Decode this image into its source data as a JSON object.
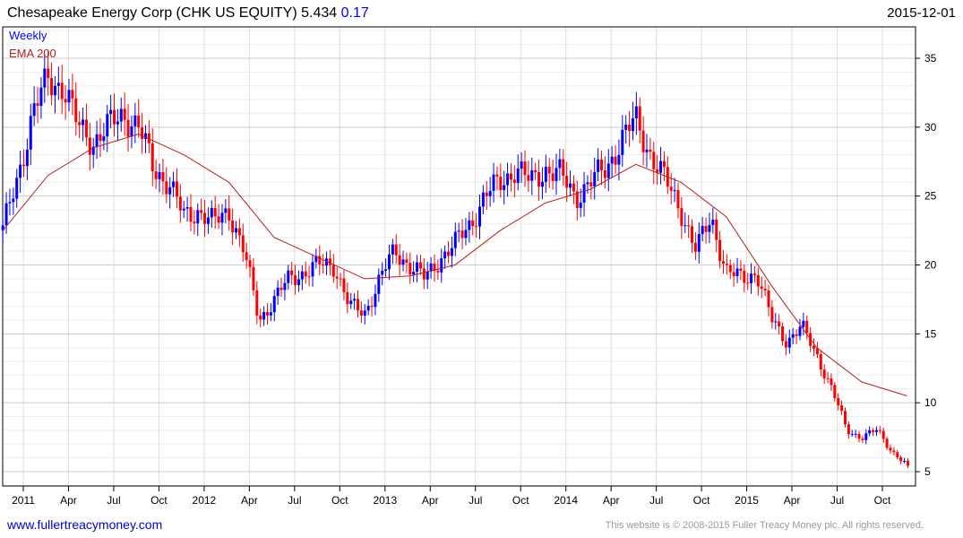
{
  "header": {
    "name": "Chesapeake Energy Corp (CHK US EQUITY)",
    "last": "5.434",
    "change": "0.17",
    "date": "2015-12-01"
  },
  "footer": {
    "link": "www.fullertreacymoney.com",
    "copyright": "This website is © 2008-2015 Fuller Treacy Money plc. All rights reserved."
  },
  "colors": {
    "up": "#0000ff",
    "down": "#ff0000",
    "ema": "#b22222",
    "grid": "#dddddd"
  },
  "chart_data": {
    "type": "candlestick",
    "title": "Chesapeake Energy Corp (CHK US EQUITY)",
    "legend": [
      "Weekly",
      "EMA 200"
    ],
    "legend_placement": "top-left",
    "ylim": [
      4,
      37
    ],
    "yticks": [
      5,
      10,
      15,
      20,
      25,
      30,
      35
    ],
    "xticks": [
      "2011",
      "Apr",
      "Jul",
      "Oct",
      "2012",
      "Apr",
      "Jul",
      "Oct",
      "2013",
      "Apr",
      "Jul",
      "Oct",
      "2014",
      "Apr",
      "Jul",
      "Oct",
      "2015",
      "Apr",
      "Jul",
      "Oct"
    ],
    "monthly_close": [
      22.5,
      26.5,
      31,
      33.5,
      33,
      30,
      29,
      30,
      31,
      30,
      27,
      26,
      23.5,
      24,
      23,
      24,
      21,
      16,
      17.5,
      19,
      19.5,
      20,
      20,
      17,
      16.5,
      19,
      21,
      20,
      19,
      20.5,
      21.5,
      23,
      25,
      26,
      27,
      26,
      27,
      26.5,
      25,
      26,
      27,
      29,
      30.5,
      28,
      26,
      24,
      21,
      23.5,
      19.5,
      19,
      19.5,
      16,
      14.5,
      15.5,
      13.5,
      11,
      8,
      7.5,
      8,
      6.5,
      5.434
    ],
    "ema200_quarterly": [
      22.5,
      26.5,
      28.5,
      29.5,
      28,
      26,
      22,
      20.5,
      19,
      19.2,
      20,
      22.5,
      24.5,
      25.5,
      27.3,
      26,
      23.5,
      18.5,
      14,
      11.5,
      10.5
    ]
  }
}
